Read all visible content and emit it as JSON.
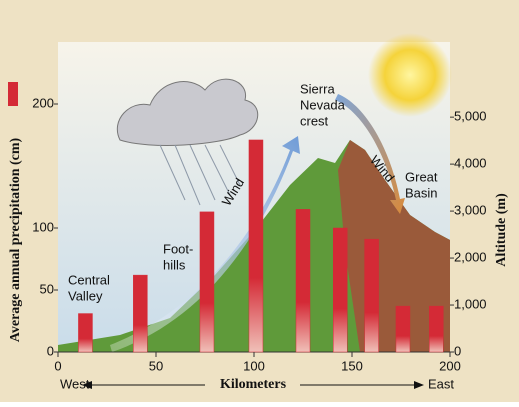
{
  "chart_data": {
    "type": "bar",
    "ylabel": "Average annual precipitation (cm)",
    "y2label": "Altitude (m)",
    "xlabel": "Kilometers",
    "west": "West",
    "east": "East",
    "x": [
      14,
      42,
      76,
      101,
      125,
      144,
      160,
      176,
      193
    ],
    "values": [
      31,
      62,
      113,
      171,
      115,
      100,
      91,
      37,
      37
    ],
    "color": "#d42a36",
    "xlim": [
      0,
      200
    ],
    "xticks": [
      0,
      50,
      100,
      150,
      200
    ],
    "ylim": [
      0,
      250
    ],
    "yticks": [
      0,
      50,
      100,
      200
    ],
    "y2lim": [
      0,
      6600
    ],
    "y2ticks": [
      0,
      {
        "value": 1000,
        "label": "1,000"
      },
      {
        "value": 2000,
        "label": "2,000"
      },
      {
        "value": 3000,
        "label": "3,000"
      },
      {
        "value": 4000,
        "label": "4,000"
      },
      {
        "value": 5000,
        "label": "5,000"
      }
    ],
    "annotations": [
      {
        "lines": [
          "Central",
          "Valley"
        ]
      },
      {
        "lines": [
          "Foot-",
          "hills"
        ]
      },
      {
        "lines": [
          "Wind"
        ]
      },
      {
        "lines": [
          "Sierra",
          "Nevada",
          "crest"
        ]
      },
      {
        "lines": [
          "Wind"
        ]
      },
      {
        "lines": [
          "Great",
          "Basin"
        ]
      }
    ]
  }
}
